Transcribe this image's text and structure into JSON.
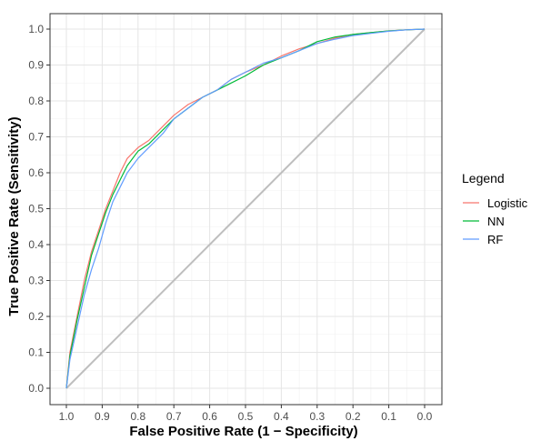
{
  "chart_data": {
    "type": "line",
    "title": "",
    "xlabel": "False Positive Rate (1 − Specificity)",
    "ylabel": "True Positive Rate (Sensitivity)",
    "x_reversed": true,
    "xlim": [
      1.0,
      0.0
    ],
    "ylim": [
      0.0,
      1.0
    ],
    "x_ticks": [
      "1.0",
      "0.9",
      "0.8",
      "0.7",
      "0.6",
      "0.5",
      "0.4",
      "0.3",
      "0.2",
      "0.1",
      "0.0"
    ],
    "y_ticks": [
      "0.0",
      "0.1",
      "0.2",
      "0.3",
      "0.4",
      "0.5",
      "0.6",
      "0.7",
      "0.8",
      "0.9",
      "1.0"
    ],
    "grid": true,
    "legend": {
      "title": "Legend",
      "position": "right"
    },
    "x_semantics": "specificity (1 - false positive rate), axis reversed from 1.0 to 0.0",
    "series": [
      {
        "name": "Logistic",
        "color": "#F8766D",
        "points": [
          [
            1.0,
            0.0
          ],
          [
            0.99,
            0.1
          ],
          [
            0.97,
            0.2
          ],
          [
            0.95,
            0.3
          ],
          [
            0.93,
            0.38
          ],
          [
            0.91,
            0.44
          ],
          [
            0.89,
            0.5
          ],
          [
            0.87,
            0.55
          ],
          [
            0.85,
            0.6
          ],
          [
            0.83,
            0.64
          ],
          [
            0.8,
            0.67
          ],
          [
            0.77,
            0.69
          ],
          [
            0.73,
            0.73
          ],
          [
            0.7,
            0.76
          ],
          [
            0.66,
            0.79
          ],
          [
            0.62,
            0.81
          ],
          [
            0.58,
            0.83
          ],
          [
            0.54,
            0.86
          ],
          [
            0.5,
            0.88
          ],
          [
            0.45,
            0.9
          ],
          [
            0.4,
            0.925
          ],
          [
            0.35,
            0.945
          ],
          [
            0.3,
            0.96
          ],
          [
            0.25,
            0.975
          ],
          [
            0.2,
            0.985
          ],
          [
            0.15,
            0.99
          ],
          [
            0.1,
            0.995
          ],
          [
            0.05,
            0.998
          ],
          [
            0.0,
            1.0
          ]
        ]
      },
      {
        "name": "NN",
        "color": "#00BA38",
        "points": [
          [
            1.0,
            0.0
          ],
          [
            0.99,
            0.09
          ],
          [
            0.97,
            0.19
          ],
          [
            0.95,
            0.28
          ],
          [
            0.93,
            0.37
          ],
          [
            0.91,
            0.43
          ],
          [
            0.89,
            0.49
          ],
          [
            0.87,
            0.54
          ],
          [
            0.85,
            0.58
          ],
          [
            0.83,
            0.62
          ],
          [
            0.8,
            0.66
          ],
          [
            0.77,
            0.68
          ],
          [
            0.73,
            0.72
          ],
          [
            0.7,
            0.75
          ],
          [
            0.66,
            0.78
          ],
          [
            0.62,
            0.81
          ],
          [
            0.58,
            0.83
          ],
          [
            0.54,
            0.85
          ],
          [
            0.5,
            0.87
          ],
          [
            0.45,
            0.9
          ],
          [
            0.4,
            0.92
          ],
          [
            0.35,
            0.94
          ],
          [
            0.3,
            0.965
          ],
          [
            0.25,
            0.978
          ],
          [
            0.2,
            0.985
          ],
          [
            0.15,
            0.99
          ],
          [
            0.1,
            0.995
          ],
          [
            0.05,
            0.998
          ],
          [
            0.0,
            1.0
          ]
        ]
      },
      {
        "name": "RF",
        "color": "#619CFF",
        "points": [
          [
            1.0,
            0.0
          ],
          [
            0.99,
            0.08
          ],
          [
            0.97,
            0.17
          ],
          [
            0.95,
            0.26
          ],
          [
            0.93,
            0.33
          ],
          [
            0.91,
            0.39
          ],
          [
            0.89,
            0.46
          ],
          [
            0.87,
            0.52
          ],
          [
            0.85,
            0.56
          ],
          [
            0.83,
            0.6
          ],
          [
            0.8,
            0.64
          ],
          [
            0.77,
            0.67
          ],
          [
            0.73,
            0.71
          ],
          [
            0.7,
            0.75
          ],
          [
            0.66,
            0.78
          ],
          [
            0.62,
            0.81
          ],
          [
            0.58,
            0.83
          ],
          [
            0.54,
            0.86
          ],
          [
            0.5,
            0.88
          ],
          [
            0.45,
            0.905
          ],
          [
            0.4,
            0.92
          ],
          [
            0.35,
            0.94
          ],
          [
            0.3,
            0.96
          ],
          [
            0.25,
            0.972
          ],
          [
            0.2,
            0.982
          ],
          [
            0.15,
            0.988
          ],
          [
            0.1,
            0.994
          ],
          [
            0.05,
            0.998
          ],
          [
            0.0,
            1.0
          ]
        ]
      }
    ],
    "reference_line": {
      "color": "#BEBEBE",
      "points": [
        [
          1.0,
          0.0
        ],
        [
          0.0,
          1.0
        ]
      ]
    }
  }
}
